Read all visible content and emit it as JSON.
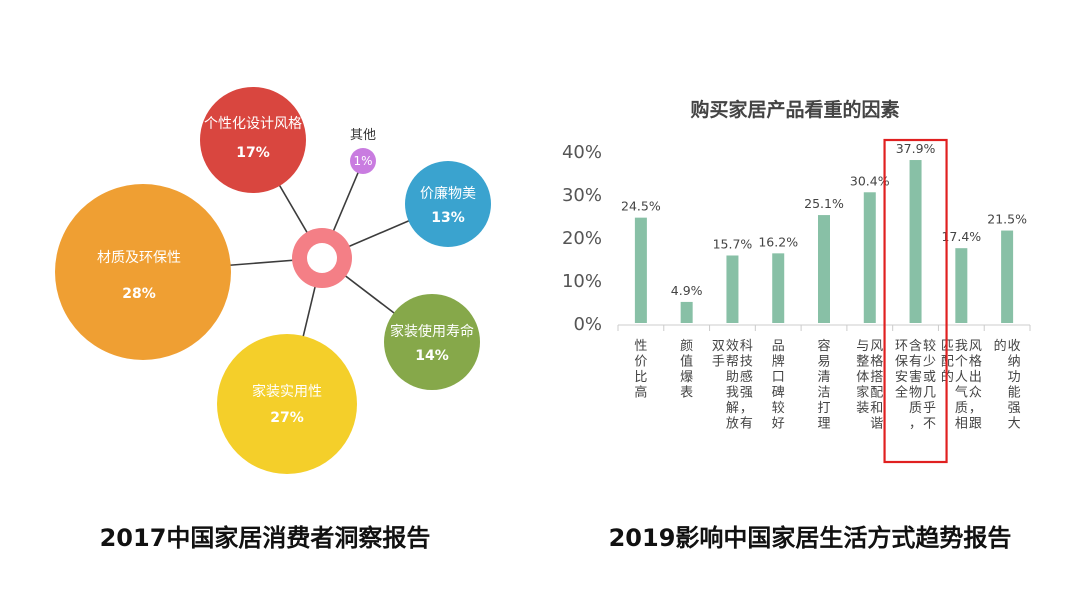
{
  "captions": {
    "left": "2017中国家居消费者洞察报告",
    "right": "2019影响中国家居生活方式趋势报告"
  },
  "chart_data": [
    {
      "type": "bubble-pie",
      "title": "",
      "center_color": "#f47f86",
      "slices": [
        {
          "label": "个性化设计风格",
          "value": 17,
          "value_label": "17%",
          "color": "#d9463f"
        },
        {
          "label": "其他",
          "value": 1,
          "value_label": "1%",
          "color": "#c97ce0"
        },
        {
          "label": "价廉物美",
          "value": 13,
          "value_label": "13%",
          "color": "#3aa3cf"
        },
        {
          "label": "家装使用寿命",
          "value": 14,
          "value_label": "14%",
          "color": "#86a84a"
        },
        {
          "label": "家装实用性",
          "value": 27,
          "value_label": "27%",
          "color": "#f4cf2a"
        },
        {
          "label": "材质及环保性",
          "value": 28,
          "value_label": "28%",
          "color": "#ef9f33"
        }
      ]
    },
    {
      "type": "bar",
      "title": "购买家居产品看重的因素",
      "categories": [
        "性价比高",
        "颜值爆表",
        "科技感强，有效帮助我解放双手",
        "品牌口碑较好",
        "容易清洁打理",
        "风格搭配和谐与整体家装",
        "较少或几乎不含有害物质，环保安全",
        "风格出众，跟我个人气质相匹配的",
        "收纳功能强大的"
      ],
      "values": [
        24.5,
        4.9,
        15.7,
        16.2,
        25.1,
        30.4,
        37.9,
        17.4,
        21.5
      ],
      "value_labels": [
        "24.5%",
        "4.9%",
        "15.7%",
        "16.2%",
        "25.1%",
        "30.4%",
        "37.9%",
        "17.4%",
        "21.5%"
      ],
      "yticks": [
        "0%",
        "10%",
        "20%",
        "30%",
        "40%"
      ],
      "ylim": [
        0,
        40
      ],
      "bar_color": "#88c0a6",
      "highlight_index": 6,
      "highlight_color": "#e02020"
    }
  ]
}
